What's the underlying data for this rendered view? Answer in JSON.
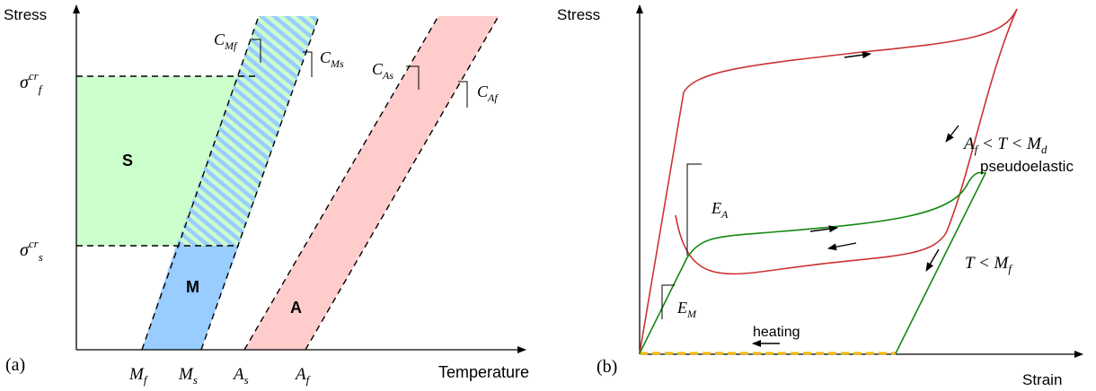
{
  "panel_a": {
    "label": "(a)",
    "y_axis": "Stress",
    "x_axis": "Temperature",
    "ticks_x": [
      {
        "base": "M",
        "sub": "f"
      },
      {
        "base": "M",
        "sub": "s"
      },
      {
        "base": "A",
        "sub": "s"
      },
      {
        "base": "A",
        "sub": "f"
      }
    ],
    "sigma_f": {
      "base": "σ",
      "sup": "cr",
      "sub": "f"
    },
    "sigma_s": {
      "base": "σ",
      "sup": "cr",
      "sub": "s"
    },
    "region_S": "S",
    "region_M": "M",
    "region_A": "A",
    "slopes": [
      {
        "base": "C",
        "sub": "Mf"
      },
      {
        "base": "C",
        "sub": "Ms"
      },
      {
        "base": "C",
        "sub": "As"
      },
      {
        "base": "C",
        "sub": "Af"
      }
    ],
    "colors": {
      "S": "#ccffcc",
      "M": "#99ccff",
      "A": "#ffcccc",
      "hatch_1": "#99ccff",
      "hatch_2": "#ccffcc"
    }
  },
  "panel_b": {
    "label": "(b)",
    "y_axis": "Stress",
    "x_axis": "Strain",
    "E_A": {
      "base": "E",
      "sub": "A"
    },
    "E_M": {
      "base": "E",
      "sub": "M"
    },
    "condition_pe": {
      "a": "A",
      "a_sub": "f",
      "mid": " < T < ",
      "m": "M",
      "m_sub": "d"
    },
    "pseudoelastic": "pseudoelastic",
    "condition_low": {
      "t": "T < ",
      "m": "M",
      "m_sub": "f"
    },
    "heating": "heating",
    "colors": {
      "red": "#cc3333",
      "green": "#118811",
      "dash": "#f2b705"
    }
  }
}
